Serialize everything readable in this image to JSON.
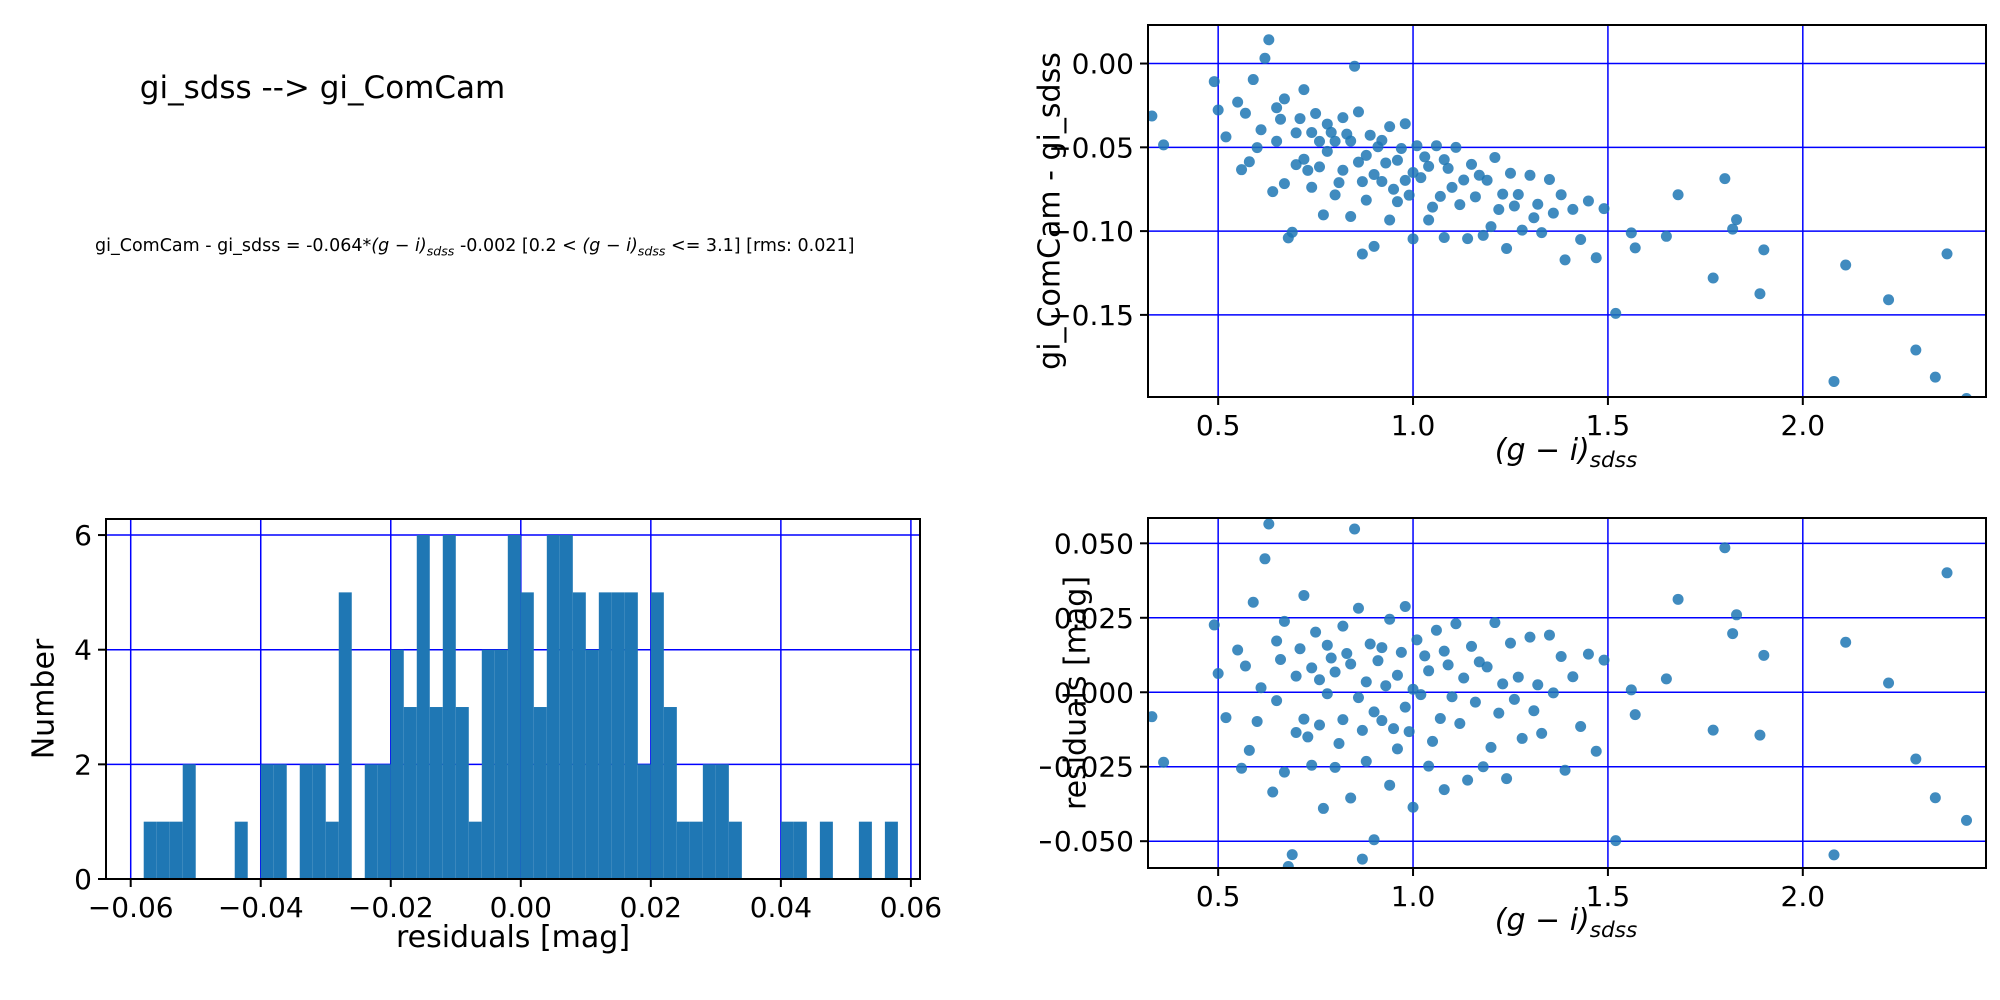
{
  "header": {
    "title": "gi_sdss --> gi_ComCam"
  },
  "equation": {
    "prefix": "gi_ComCam - gi_sdss = -0.064*",
    "gi_term": "(g − i)",
    "gi_sub": "sdss",
    "middle": " -0.002  [0.2 < ",
    "gi_term2": "(g − i)",
    "gi_sub2": "sdss",
    "suffix": " <= 3.1]  [rms: 0.021]"
  },
  "fit": {
    "slope": -0.064,
    "intercept": -0.002,
    "rms": 0.021,
    "valid_range": [
      0.2,
      3.1
    ]
  },
  "colors": {
    "marker": "#1f77b4",
    "hist_bar": "#1f77b4",
    "grid": "#0000ff",
    "spine": "#000000"
  },
  "samples": [
    [
      0.33,
      -0.0082
    ],
    [
      0.36,
      -0.0235
    ],
    [
      0.49,
      0.0226
    ],
    [
      0.5,
      0.0063
    ],
    [
      0.52,
      -0.0085
    ],
    [
      0.55,
      0.0142
    ],
    [
      0.56,
      -0.0255
    ],
    [
      0.57,
      0.0088
    ],
    [
      0.58,
      -0.0195
    ],
    [
      0.59,
      0.0302
    ],
    [
      0.6,
      -0.0098
    ],
    [
      0.61,
      0.0015
    ],
    [
      0.62,
      0.0448
    ],
    [
      0.63,
      0.0565
    ],
    [
      0.64,
      -0.0335
    ],
    [
      0.65,
      0.0172
    ],
    [
      0.65,
      -0.0028
    ],
    [
      0.66,
      0.011
    ],
    [
      0.67,
      -0.0268
    ],
    [
      0.67,
      0.0238
    ],
    [
      0.68,
      -0.0585
    ],
    [
      0.69,
      -0.0545
    ],
    [
      0.7,
      -0.0135
    ],
    [
      0.7,
      0.0054
    ],
    [
      0.71,
      0.0146
    ],
    [
      0.72,
      -0.009
    ],
    [
      0.72,
      0.0325
    ],
    [
      0.73,
      -0.015
    ],
    [
      0.74,
      0.0082
    ],
    [
      0.74,
      -0.0245
    ],
    [
      0.75,
      0.0202
    ],
    [
      0.76,
      -0.011
    ],
    [
      0.76,
      0.0042
    ],
    [
      0.77,
      -0.039
    ],
    [
      0.78,
      0.0158
    ],
    [
      0.78,
      -0.0005
    ],
    [
      0.79,
      0.0115
    ],
    [
      0.8,
      -0.0252
    ],
    [
      0.8,
      0.0068
    ],
    [
      0.81,
      -0.0172
    ],
    [
      0.82,
      0.0222
    ],
    [
      0.82,
      -0.0092
    ],
    [
      0.83,
      0.013
    ],
    [
      0.84,
      -0.0355
    ],
    [
      0.84,
      0.0095
    ],
    [
      0.85,
      0.0548
    ],
    [
      0.86,
      -0.0018
    ],
    [
      0.86,
      0.0282
    ],
    [
      0.87,
      -0.056
    ],
    [
      0.87,
      -0.0128
    ],
    [
      0.88,
      0.0035
    ],
    [
      0.88,
      -0.0232
    ],
    [
      0.89,
      0.0162
    ],
    [
      0.9,
      -0.0495
    ],
    [
      0.9,
      -0.0066
    ],
    [
      0.91,
      0.0106
    ],
    [
      0.92,
      0.015
    ],
    [
      0.92,
      -0.0095
    ],
    [
      0.93,
      0.0022
    ],
    [
      0.94,
      -0.0312
    ],
    [
      0.94,
      0.0245
    ],
    [
      0.95,
      -0.0122
    ],
    [
      0.96,
      0.0057
    ],
    [
      0.96,
      -0.019
    ],
    [
      0.97,
      0.0134
    ],
    [
      0.98,
      -0.005
    ],
    [
      0.98,
      0.0288
    ],
    [
      0.99,
      -0.0132
    ],
    [
      1.0,
      0.001
    ],
    [
      1.0,
      -0.0386
    ],
    [
      1.01,
      0.0176
    ],
    [
      1.02,
      -0.0008
    ],
    [
      1.03,
      0.0122
    ],
    [
      1.04,
      -0.0248
    ],
    [
      1.04,
      0.0072
    ],
    [
      1.05,
      -0.0165
    ],
    [
      1.06,
      0.0208
    ],
    [
      1.07,
      -0.0088
    ],
    [
      1.08,
      0.0138
    ],
    [
      1.08,
      -0.0327
    ],
    [
      1.09,
      0.0092
    ],
    [
      1.1,
      -0.0015
    ],
    [
      1.11,
      0.023
    ],
    [
      1.12,
      -0.0105
    ],
    [
      1.13,
      0.0048
    ],
    [
      1.14,
      -0.0295
    ],
    [
      1.15,
      0.0154
    ],
    [
      1.16,
      -0.0033
    ],
    [
      1.17,
      0.0102
    ],
    [
      1.18,
      -0.025
    ],
    [
      1.19,
      0.0085
    ],
    [
      1.2,
      -0.0185
    ],
    [
      1.21,
      0.0234
    ],
    [
      1.22,
      -0.007
    ],
    [
      1.23,
      0.0028
    ],
    [
      1.24,
      -0.029
    ],
    [
      1.25,
      0.0165
    ],
    [
      1.26,
      -0.0024
    ],
    [
      1.27,
      0.0051
    ],
    [
      1.28,
      -0.0155
    ],
    [
      1.3,
      0.0185
    ],
    [
      1.31,
      -0.0062
    ],
    [
      1.32,
      0.0025
    ],
    [
      1.33,
      -0.0138
    ],
    [
      1.35,
      0.0192
    ],
    [
      1.36,
      -0.0002
    ],
    [
      1.38,
      0.012
    ],
    [
      1.39,
      -0.0262
    ],
    [
      1.41,
      0.0052
    ],
    [
      1.43,
      -0.0115
    ],
    [
      1.45,
      0.0128
    ],
    [
      1.47,
      -0.0198
    ],
    [
      1.49,
      0.0108
    ],
    [
      1.52,
      -0.0498
    ],
    [
      1.56,
      0.0008
    ],
    [
      1.57,
      -0.0075
    ],
    [
      1.65,
      0.0045
    ],
    [
      1.68,
      0.0312
    ],
    [
      1.77,
      -0.0127
    ],
    [
      1.8,
      0.0485
    ],
    [
      1.82,
      0.0197
    ],
    [
      1.83,
      0.026
    ],
    [
      1.89,
      -0.0144
    ],
    [
      1.9,
      0.0124
    ],
    [
      2.08,
      -0.0546
    ],
    [
      2.11,
      0.0168
    ],
    [
      2.22,
      0.0031
    ],
    [
      2.29,
      -0.0224
    ],
    [
      2.34,
      -0.0354
    ],
    [
      2.37,
      0.0401
    ],
    [
      2.42,
      -0.043
    ]
  ],
  "chart_data": [
    {
      "id": "color_term",
      "type": "scatter",
      "xlabel_main": "(g − i)",
      "xlabel_sub": "sdss",
      "ylabel": "gi_ComCam - gi_sdss",
      "xlim": [
        0.32,
        2.47
      ],
      "ylim": [
        -0.199,
        0.023
      ],
      "grid": true,
      "legend": "none",
      "xticks": {
        "values": [
          0.5,
          1.0,
          1.5,
          2.0
        ],
        "labels": [
          "0.5",
          "1.0",
          "1.5",
          "2.0"
        ]
      },
      "yticks": {
        "values": [
          0.0,
          -0.05,
          -0.1,
          -0.15
        ],
        "labels": [
          "0.00",
          "−0.05",
          "−0.10",
          "−0.15"
        ]
      },
      "note": "y = slope*x + intercept + residual, computed from samples and fit"
    },
    {
      "id": "residual_hist",
      "type": "bar",
      "xlabel": "residuals [mag]",
      "ylabel": "Number",
      "xlim": [
        -0.0638,
        0.0614
      ],
      "ylim": [
        0,
        6.28
      ],
      "grid": true,
      "bin_start": -0.06,
      "bin_width": 0.002,
      "counts": [
        0,
        1,
        1,
        1,
        2,
        0,
        0,
        0,
        1,
        0,
        2,
        2,
        0,
        2,
        2,
        1,
        5,
        0,
        2,
        2,
        4,
        3,
        6,
        3,
        6,
        3,
        1,
        4,
        4,
        6,
        5,
        3,
        6,
        6,
        5,
        4,
        5,
        5,
        5,
        2,
        5,
        3,
        1,
        1,
        2,
        2,
        1,
        0,
        0,
        0,
        1,
        1,
        0,
        1,
        0,
        0,
        1,
        0,
        1,
        0
      ],
      "xticks": {
        "values": [
          -0.06,
          -0.04,
          -0.02,
          0.0,
          0.02,
          0.04,
          0.06
        ],
        "labels": [
          "−0.06",
          "−0.04",
          "−0.02",
          "0.00",
          "0.02",
          "0.04",
          "0.06"
        ]
      },
      "yticks": {
        "values": [
          0,
          2,
          4,
          6
        ],
        "labels": [
          "0",
          "2",
          "4",
          "6"
        ]
      }
    },
    {
      "id": "residuals_vs_color",
      "type": "scatter",
      "xlabel_main": "(g − i)",
      "xlabel_sub": "sdss",
      "ylabel": "residuals [mag]",
      "xlim": [
        0.32,
        2.47
      ],
      "ylim": [
        -0.059,
        0.0585
      ],
      "grid": true,
      "xticks": {
        "values": [
          0.5,
          1.0,
          1.5,
          2.0
        ],
        "labels": [
          "0.5",
          "1.0",
          "1.5",
          "2.0"
        ]
      },
      "yticks": {
        "values": [
          0.05,
          0.025,
          0.0,
          -0.025,
          -0.05
        ],
        "labels": [
          "0.050",
          "0.025",
          "0.000",
          "−0.025",
          "−0.050"
        ]
      },
      "note": "y = residual value from samples"
    }
  ]
}
